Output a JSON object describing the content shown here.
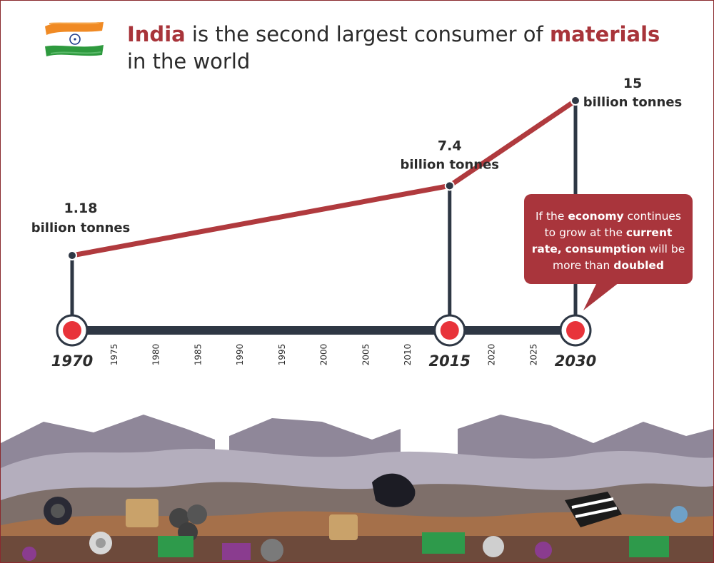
{
  "header": {
    "title_parts": [
      "India",
      " is the second largest consumer of ",
      "materials",
      "in the world"
    ]
  },
  "callout": {
    "parts": [
      "If the ",
      "economy",
      " continues to grow at the ",
      "current rate,",
      "consumption",
      " will be more than ",
      "doubled"
    ]
  },
  "icons": {
    "flag": "india-flag-icon",
    "scene": "garbage-heap-illustration"
  },
  "colors": {
    "accent": "#a8343a",
    "axis": "#2e3744",
    "marker": "#e8333a",
    "trend": "#b03a3e"
  },
  "chart_data": {
    "type": "line",
    "title": "India is the second largest consumer of materials in the world",
    "x_unit": "year",
    "y_unit": "billion tonnes",
    "xlim": [
      1970,
      2030
    ],
    "major_ticks": [
      1970,
      2015,
      2030
    ],
    "minor_ticks": [
      1975,
      1980,
      1985,
      1990,
      1995,
      2000,
      2005,
      2010,
      2020,
      2025
    ],
    "points": [
      {
        "x": 1970,
        "y": 1.18,
        "value_label": "1.18",
        "unit_label": "billion tonnes"
      },
      {
        "x": 2015,
        "y": 7.4,
        "value_label": "7.4",
        "unit_label": "billion tonnes"
      },
      {
        "x": 2030,
        "y": 15,
        "value_label": "15",
        "unit_label": "billion tonnes"
      }
    ],
    "annotation": "If the economy continues to grow at the current rate, consumption will be more than doubled"
  }
}
